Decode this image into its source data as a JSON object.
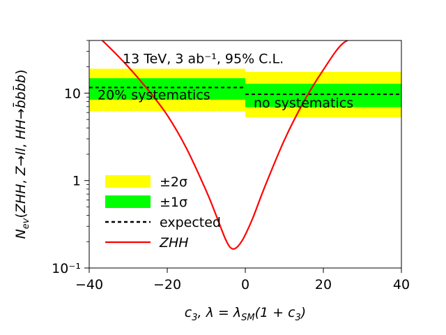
{
  "chart_data": {
    "type": "line",
    "xlabel": "c₃,  λ = λ_SM(1 + c₃)",
    "ylabel": "N_ev(ZHH, Z→ll, HH→b̅bb̅b)",
    "xlim": [
      -40,
      40
    ],
    "ylim": [
      0.1,
      40
    ],
    "yscale": "log",
    "x_ticks": [
      {
        "value": -40,
        "label": "−40"
      },
      {
        "value": -20,
        "label": "−20"
      },
      {
        "value": 0,
        "label": "0"
      },
      {
        "value": 20,
        "label": "20"
      },
      {
        "value": 40,
        "label": "40"
      }
    ],
    "y_ticks": [
      {
        "value": 0.1,
        "label": "10⁻¹"
      },
      {
        "value": 1,
        "label": "1"
      },
      {
        "value": 10,
        "label": "10"
      }
    ],
    "annotations": [
      {
        "text": "13 TeV, 3 ab⁻¹, 95% C.L.",
        "x": -40,
        "y": 25
      },
      {
        "text": "20% systematics",
        "x": -40,
        "y": 10
      },
      {
        "text": "no systematics",
        "x": 0,
        "y": 7.8
      }
    ],
    "bands": [
      {
        "name": "20% systematics",
        "x_range": [
          -40,
          0
        ],
        "expected": 11.6,
        "sigma1": [
          8.4,
          14.8
        ],
        "sigma2": [
          6.2,
          19.0
        ]
      },
      {
        "name": "no systematics",
        "x_range": [
          0,
          40
        ],
        "expected": 9.7,
        "sigma1": [
          6.9,
          12.8
        ],
        "sigma2": [
          5.3,
          17.5
        ]
      }
    ],
    "series": [
      {
        "name": "ZHH",
        "color": "#ff0000",
        "x": [
          -40,
          -35,
          -30,
          -25,
          -20,
          -15,
          -10,
          -8,
          -6,
          -5,
          -4,
          -3,
          -2,
          -1,
          0,
          2,
          5,
          10,
          15,
          20,
          25,
          30
        ],
        "y": [
          55,
          34,
          20,
          11,
          5.6,
          2.3,
          0.76,
          0.46,
          0.27,
          0.21,
          0.175,
          0.165,
          0.175,
          0.2,
          0.24,
          0.38,
          0.85,
          2.9,
          8.0,
          18.5,
          37,
          45
        ]
      }
    ],
    "legend": {
      "placement": "lower-left",
      "entries": [
        {
          "label": "±2σ",
          "color": "#ffff00",
          "kind": "patch"
        },
        {
          "label": "±1σ",
          "color": "#00ff00",
          "kind": "patch"
        },
        {
          "label": "expected",
          "color": "#000000",
          "kind": "dashed"
        },
        {
          "label": "ZHH",
          "color": "#ff0000",
          "kind": "line"
        }
      ]
    },
    "colors": {
      "sigma2": "#ffff00",
      "sigma1": "#00ff00",
      "expected": "#000000",
      "curve": "#ff0000"
    }
  }
}
